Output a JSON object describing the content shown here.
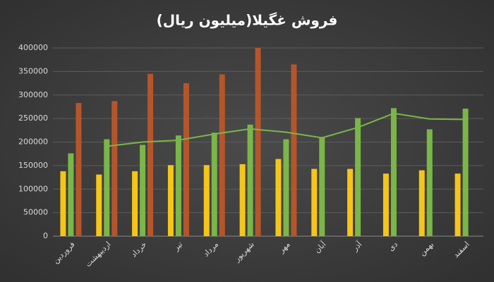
{
  "chart_data": {
    "type": "bar",
    "title": "فروش غگیلا(میلیون ریال)",
    "categories": [
      "فروردین",
      "اردیبهشت",
      "خرداد",
      "تیر",
      "مرداد",
      "شهریور",
      "مهر",
      "آبان",
      "آذر",
      "دی",
      "بهمن",
      "اسفند"
    ],
    "series": [
      {
        "type": "bar",
        "color": "#f5c518",
        "values": [
          138000,
          131000,
          138000,
          151000,
          151000,
          153000,
          164000,
          143000,
          143000,
          133000,
          140000,
          133000
        ]
      },
      {
        "type": "bar",
        "color": "#7ab648",
        "values": [
          176000,
          206000,
          194000,
          214000,
          220000,
          237000,
          206000,
          211000,
          251000,
          272000,
          227000,
          271000
        ]
      },
      {
        "type": "bar",
        "color": "#b5552b",
        "values": [
          283000,
          287000,
          345000,
          325000,
          344000,
          400000,
          365000,
          null,
          null,
          null,
          null,
          null
        ]
      },
      {
        "type": "line",
        "color": "#7ab648",
        "values": [
          null,
          191000,
          200000,
          204000,
          217000,
          228000,
          221000,
          209000,
          231000,
          261000,
          249000,
          248000
        ]
      }
    ],
    "ylim": [
      0,
      400000
    ],
    "yticks": [
      0,
      50000,
      100000,
      150000,
      200000,
      250000,
      300000,
      350000,
      400000
    ],
    "grid": true
  }
}
